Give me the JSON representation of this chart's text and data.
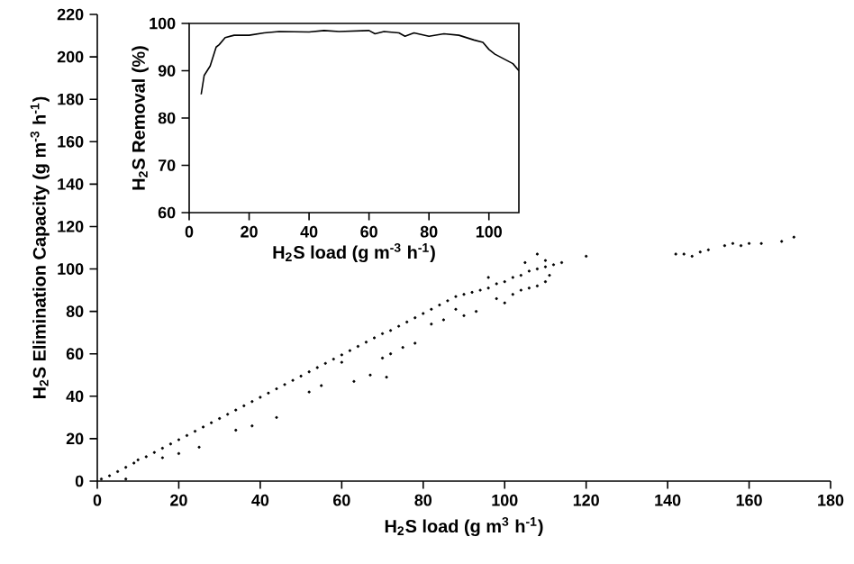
{
  "chart_data": [
    {
      "type": "scatter",
      "xlabel": "H$_{2}$S load (g m$^{3}$ h$^{-1}$)",
      "ylabel": "H$_{2}$S Elimination Capacity (g m$^{-3}$ h$^{-1}$)",
      "xlim": [
        0,
        180
      ],
      "ylim": [
        0,
        220
      ],
      "xticks": [
        0,
        20,
        40,
        60,
        80,
        100,
        120,
        140,
        160,
        180
      ],
      "yticks": [
        0,
        20,
        40,
        60,
        80,
        100,
        120,
        140,
        160,
        180,
        200,
        220
      ],
      "grid": false,
      "marker": "circle",
      "color": "#000000",
      "x": [
        1,
        3,
        5,
        7,
        9,
        10,
        12,
        14,
        16,
        18,
        20,
        22,
        24,
        26,
        28,
        30,
        32,
        34,
        36,
        38,
        40,
        42,
        44,
        46,
        48,
        50,
        52,
        54,
        56,
        58,
        60,
        62,
        64,
        66,
        68,
        70,
        72,
        74,
        76,
        78,
        80,
        82,
        84,
        86,
        88,
        90,
        92,
        94,
        96,
        98,
        100,
        102,
        104,
        106,
        108,
        110,
        112,
        114,
        120,
        7,
        16,
        20,
        25,
        34,
        38,
        44,
        52,
        55,
        60,
        63,
        67,
        71,
        70,
        72,
        75,
        78,
        82,
        85,
        88,
        90,
        93,
        98,
        100,
        102,
        104,
        106,
        108,
        110,
        111,
        105,
        108,
        96,
        110,
        142,
        144,
        146,
        148,
        150,
        154,
        156,
        158,
        160,
        163,
        168,
        171
      ],
      "values": [
        1,
        2.5,
        4.5,
        6.5,
        8.5,
        10,
        11.5,
        13.5,
        15.5,
        17.5,
        19.5,
        21.5,
        23.5,
        25.5,
        27.5,
        29.5,
        31.5,
        33.5,
        35.5,
        37.5,
        39.5,
        41.5,
        43.5,
        45.5,
        47.5,
        49.5,
        51.5,
        53.5,
        55.5,
        57.5,
        59.5,
        61.5,
        63.5,
        65.5,
        67.5,
        69.5,
        71,
        73,
        75,
        77,
        79,
        81,
        83,
        85,
        87,
        88,
        89,
        90,
        91,
        93,
        94,
        96,
        97,
        99,
        100,
        101,
        102,
        103,
        106,
        1,
        11,
        13,
        16,
        24,
        26,
        30,
        42,
        45,
        56,
        47,
        50,
        49,
        58,
        60,
        63,
        65,
        74,
        76,
        81,
        78,
        80,
        86,
        84,
        88,
        90,
        91,
        92,
        94,
        97,
        103,
        107,
        96,
        104,
        107,
        107,
        106,
        108,
        109,
        111,
        112,
        111,
        112,
        112,
        113,
        115
      ]
    },
    {
      "type": "line",
      "xlabel": "H$_{2}$S load (g m$^{-3}$ h$^{-1}$)",
      "ylabel": "H$_{2}$S Removal (%)",
      "xlim": [
        0,
        110
      ],
      "ylim": [
        60,
        100
      ],
      "xticks": [
        0,
        20,
        40,
        60,
        80,
        100
      ],
      "yticks": [
        60,
        70,
        80,
        90,
        100
      ],
      "grid": false,
      "marker": "none",
      "color": "#000000",
      "x": [
        4,
        5,
        6,
        7,
        8,
        9,
        10,
        12,
        15,
        20,
        25,
        30,
        40,
        45,
        50,
        60,
        62,
        65,
        70,
        72,
        75,
        80,
        85,
        90,
        95,
        98,
        100,
        102,
        105,
        108,
        110
      ],
      "values": [
        85,
        89,
        90,
        91,
        93,
        95,
        95.5,
        97,
        97.5,
        97.5,
        98,
        98.3,
        98.2,
        98.5,
        98.3,
        98.5,
        97.8,
        98.3,
        98,
        97.3,
        98,
        97.3,
        97.8,
        97.5,
        96.5,
        96,
        94.5,
        93.5,
        92.5,
        91.5,
        90
      ]
    }
  ]
}
